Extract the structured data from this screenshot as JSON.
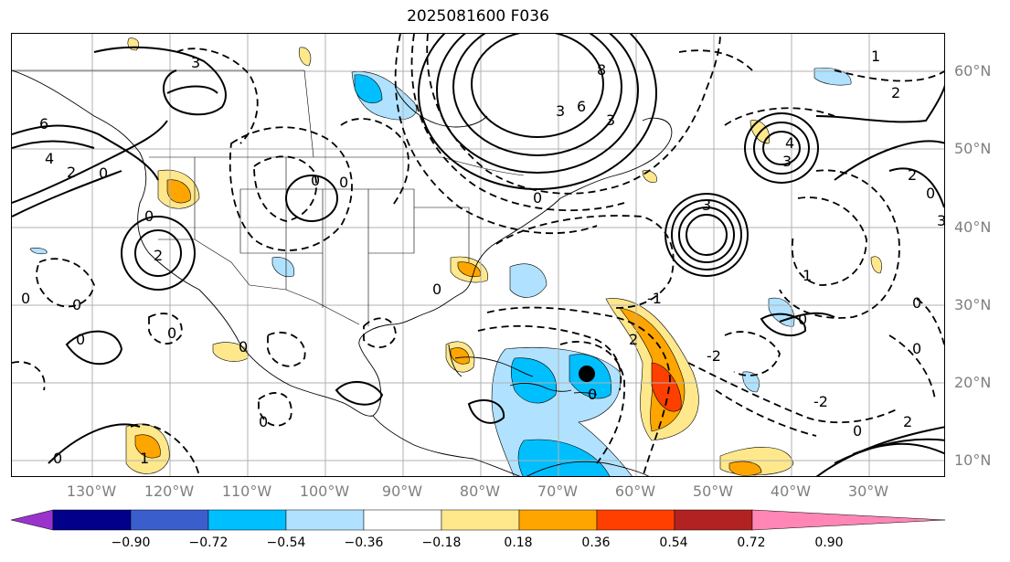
{
  "title": "2025081600 F036",
  "lat_labels": [
    "60°N",
    "50°N",
    "40°N",
    "30°N",
    "20°N",
    "10°N"
  ],
  "lon_labels": [
    "130°W",
    "120°W",
    "110°W",
    "100°W",
    "90°W",
    "80°W",
    "70°W",
    "60°W",
    "50°W",
    "40°W",
    "30°W"
  ],
  "colorbar": {
    "ticks": [
      "−0.90",
      "−0.72",
      "−0.54",
      "−0.36",
      "−0.18",
      "0.18",
      "0.36",
      "0.54",
      "0.72",
      "0.90"
    ],
    "colors": [
      "#9a33cc",
      "#02008b",
      "#3a5fcd",
      "#00bfff",
      "#b0e2ff",
      "#ffffff",
      "#ffe88c",
      "#ffa500",
      "#ff3f00",
      "#b22222",
      "#ff86b5"
    ]
  },
  "storm_marker": "storm-center",
  "contour_labels": [
    "0",
    "1",
    "2",
    "3",
    "4",
    "6",
    "-1",
    "-2"
  ]
}
